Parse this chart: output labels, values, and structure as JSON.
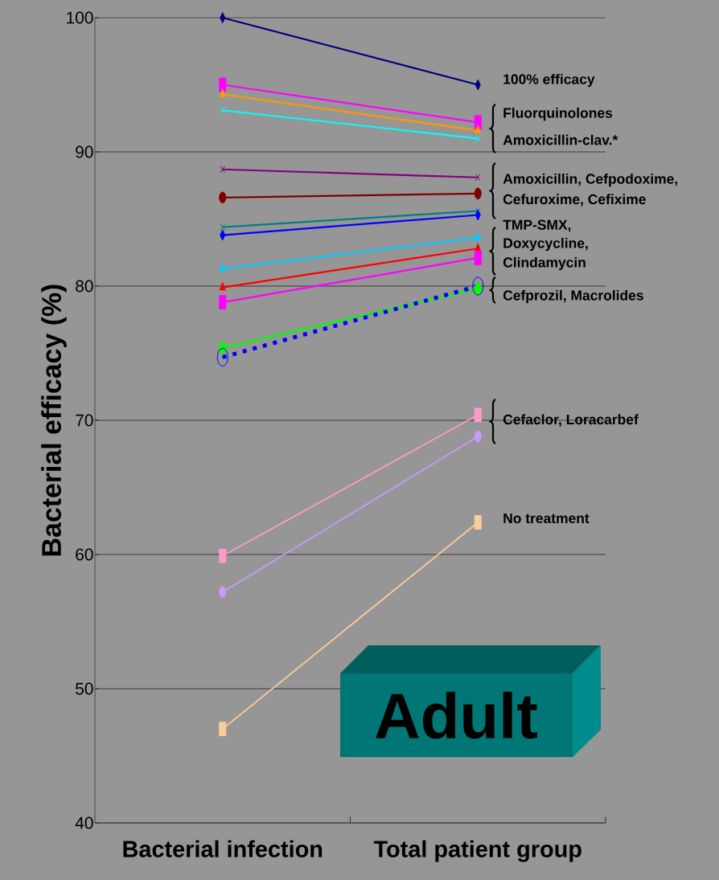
{
  "chart_data": {
    "type": "line",
    "ylabel": "Bacterial efficacy (%)",
    "categories": [
      "Bacterial infection",
      "Total patient group"
    ],
    "ylim": [
      40,
      100
    ],
    "yticks": [
      40,
      50,
      60,
      70,
      80,
      90,
      100
    ],
    "grid": "y",
    "series": [
      {
        "color": "#000080",
        "values": [
          100,
          95.0
        ],
        "marker": "diamond"
      },
      {
        "color": "#ff00ff",
        "values": [
          95.0,
          92.2
        ],
        "marker": "square"
      },
      {
        "color": "#ff9900",
        "values": [
          94.3,
          91.6
        ],
        "marker": "triangle"
      },
      {
        "color": "#00ffff",
        "values": [
          93.1,
          91.0
        ],
        "marker": "cross"
      },
      {
        "color": "#800080",
        "values": [
          88.7,
          88.1
        ],
        "marker": "cross"
      },
      {
        "color": "#800000",
        "values": [
          86.6,
          86.9
        ],
        "marker": "circle"
      },
      {
        "color": "#008080",
        "values": [
          84.4,
          85.6
        ],
        "marker": "cross"
      },
      {
        "color": "#0000ff",
        "values": [
          83.8,
          85.3
        ],
        "marker": "diamond"
      },
      {
        "color": "#00ccff",
        "values": [
          81.3,
          83.6
        ],
        "marker": "triangle"
      },
      {
        "color": "#ff0000",
        "values": [
          79.9,
          82.8
        ],
        "marker": "triangle"
      },
      {
        "color": "#ff00ff",
        "values": [
          78.8,
          82.1
        ],
        "marker": "square"
      },
      {
        "color": "#00ff00",
        "values": [
          75.4,
          79.8
        ],
        "marker": "circle"
      },
      {
        "color": "#0000ff",
        "values": [
          74.7,
          80.0
        ],
        "marker": "circle",
        "line_style": "dotted"
      },
      {
        "color": "#ff99cc",
        "values": [
          59.9,
          70.4
        ],
        "marker": "square"
      },
      {
        "color": "#cc99ff",
        "values": [
          57.2,
          68.8
        ],
        "marker": "circle"
      },
      {
        "color": "#ffcc99",
        "values": [
          47.0,
          62.4
        ],
        "marker": "square"
      }
    ],
    "annotations": [
      "100% efficacy",
      "Fluorquinolones",
      "Amoxicillin-clav.*",
      "Amoxicillin, Cefpodoxime,",
      "Cefuroxime, Cefixime",
      "TMP-SMX,",
      "Doxycycline,",
      "Clindamycin",
      "Cefprozil, Macrolides",
      "Cefaclor, Loracarbef",
      "No treatment",
      "Adult"
    ]
  }
}
